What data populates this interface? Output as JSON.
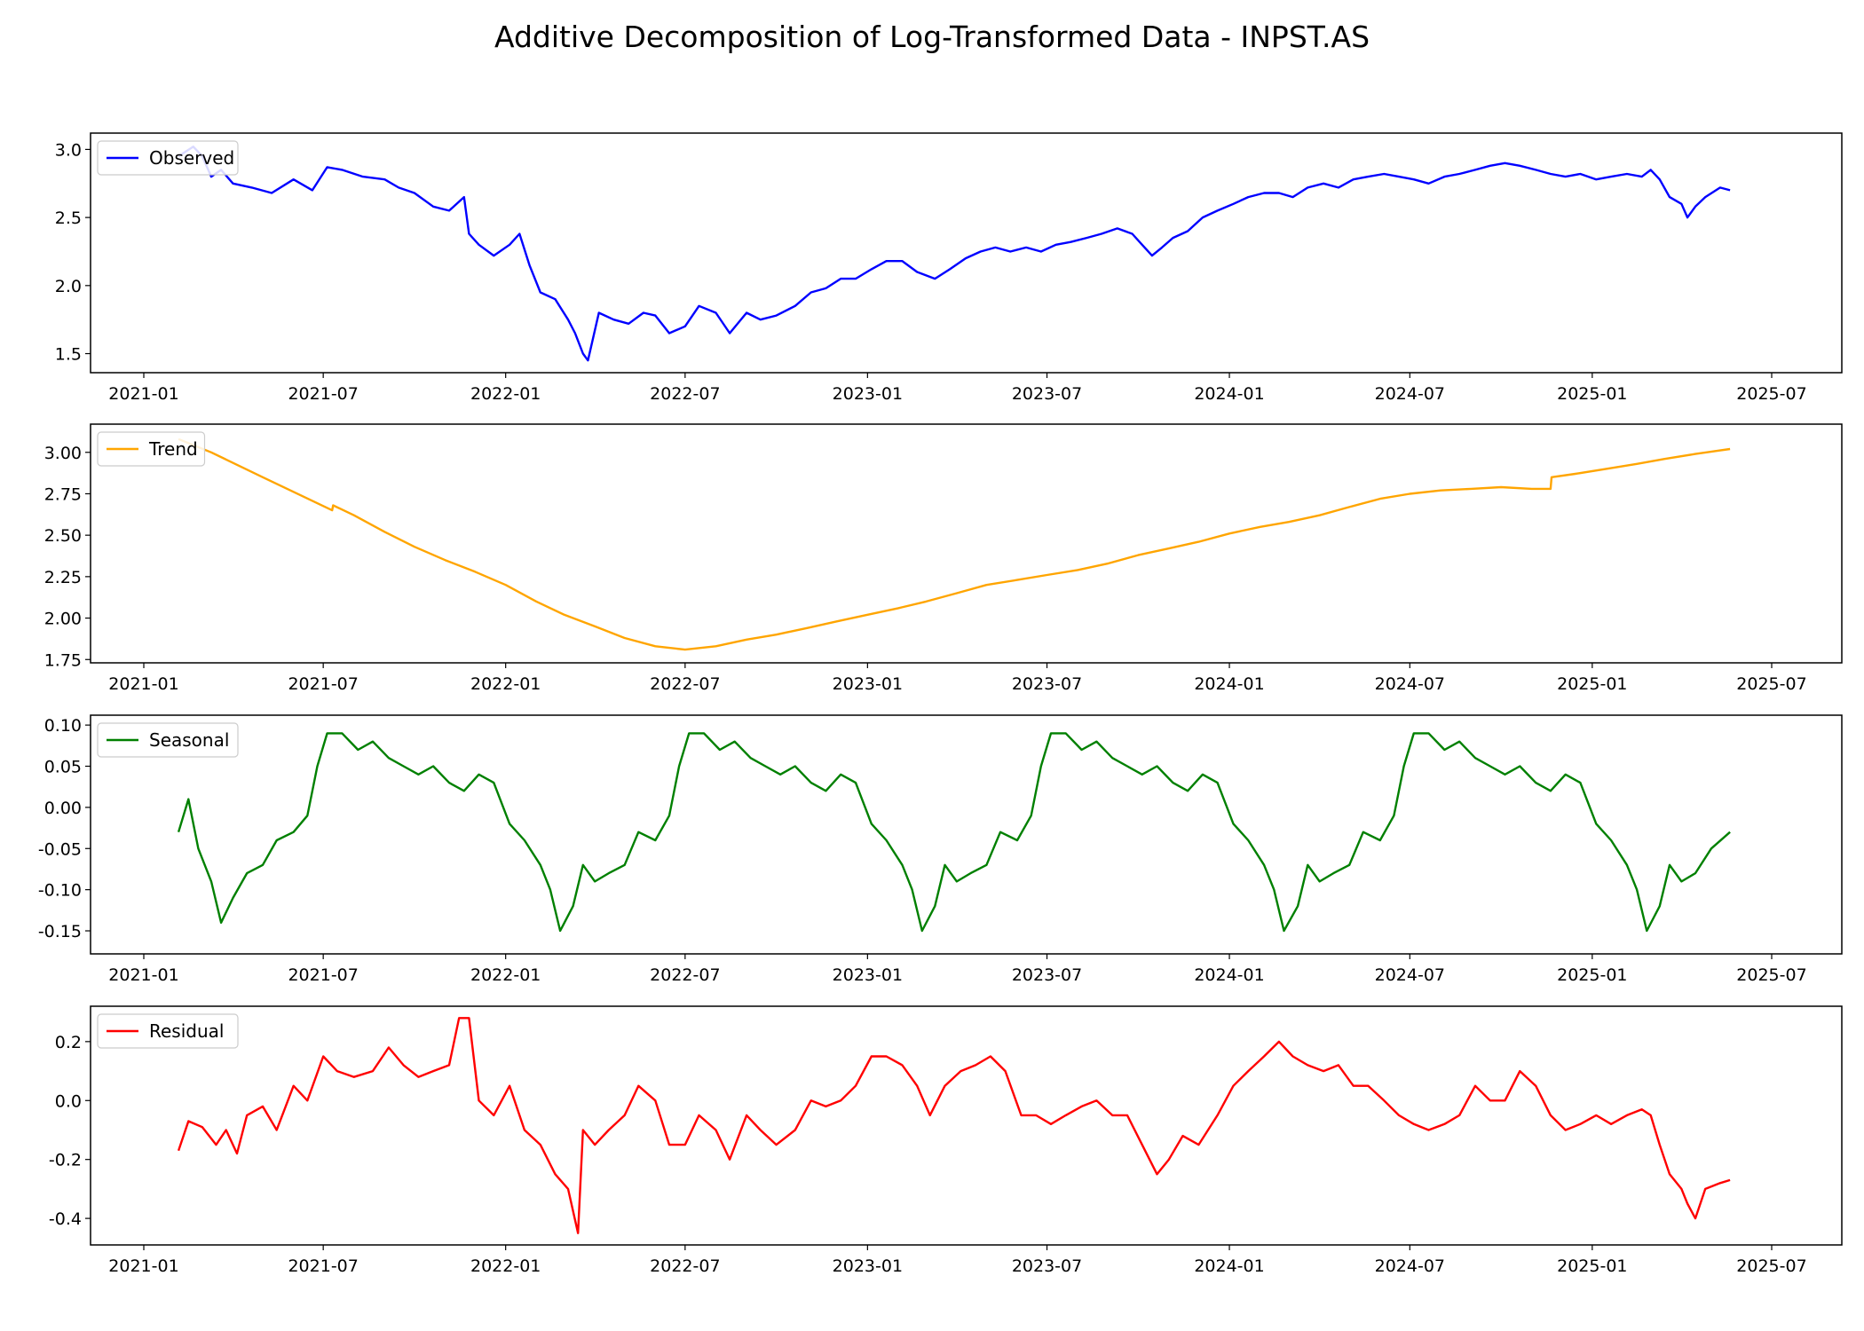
{
  "title": "Additive Decomposition of Log-Transformed Data - INPST.AS",
  "chart_data": [
    {
      "type": "line",
      "name": "Observed",
      "color": "#0000ff",
      "legend": "upper-left",
      "x_ticks": [
        "2021-01",
        "2021-07",
        "2022-01",
        "2022-07",
        "2023-01",
        "2023-07",
        "2024-01",
        "2024-07",
        "2025-01",
        "2025-07"
      ],
      "y_ticks": [
        "1.5",
        "2.0",
        "2.5",
        "3.0"
      ],
      "ylim": [
        1.36,
        3.12
      ],
      "series": [
        {
          "name": "Observed",
          "x": [
            "2021-02-05",
            "2021-02-20",
            "2021-03-01",
            "2021-03-10",
            "2021-03-20",
            "2021-04-01",
            "2021-04-20",
            "2021-05-10",
            "2021-06-01",
            "2021-06-20",
            "2021-07-05",
            "2021-07-20",
            "2021-08-10",
            "2021-09-01",
            "2021-09-15",
            "2021-10-01",
            "2021-10-20",
            "2021-11-05",
            "2021-11-20",
            "2021-11-25",
            "2021-12-05",
            "2021-12-20",
            "2022-01-05",
            "2022-01-15",
            "2022-01-25",
            "2022-02-05",
            "2022-02-20",
            "2022-03-05",
            "2022-03-12",
            "2022-03-20",
            "2022-03-25",
            "2022-04-05",
            "2022-04-20",
            "2022-05-05",
            "2022-05-20",
            "2022-06-01",
            "2022-06-15",
            "2022-07-01",
            "2022-07-15",
            "2022-08-01",
            "2022-08-15",
            "2022-09-01",
            "2022-09-15",
            "2022-10-01",
            "2022-10-20",
            "2022-11-05",
            "2022-11-20",
            "2022-12-05",
            "2022-12-20",
            "2023-01-05",
            "2023-01-20",
            "2023-02-05",
            "2023-02-20",
            "2023-03-10",
            "2023-03-25",
            "2023-04-10",
            "2023-04-25",
            "2023-05-10",
            "2023-05-25",
            "2023-06-10",
            "2023-06-25",
            "2023-07-10",
            "2023-07-25",
            "2023-08-10",
            "2023-08-25",
            "2023-09-10",
            "2023-09-25",
            "2023-10-05",
            "2023-10-15",
            "2023-10-25",
            "2023-11-05",
            "2023-11-20",
            "2023-12-05",
            "2023-12-20",
            "2024-01-05",
            "2024-01-20",
            "2024-02-05",
            "2024-02-20",
            "2024-03-05",
            "2024-03-20",
            "2024-04-05",
            "2024-04-20",
            "2024-05-05",
            "2024-05-20",
            "2024-06-05",
            "2024-06-20",
            "2024-07-05",
            "2024-07-20",
            "2024-08-05",
            "2024-08-20",
            "2024-09-05",
            "2024-09-20",
            "2024-10-05",
            "2024-10-20",
            "2024-11-05",
            "2024-11-20",
            "2024-12-05",
            "2024-12-20",
            "2025-01-05",
            "2025-01-20",
            "2025-02-05",
            "2025-02-20",
            "2025-03-01",
            "2025-03-10",
            "2025-03-20",
            "2025-04-01",
            "2025-04-07",
            "2025-04-15",
            "2025-04-25",
            "2025-05-10",
            "2025-05-20"
          ],
          "y": [
            2.95,
            3.02,
            2.95,
            2.8,
            2.85,
            2.75,
            2.72,
            2.68,
            2.78,
            2.7,
            2.87,
            2.85,
            2.8,
            2.78,
            2.72,
            2.68,
            2.58,
            2.55,
            2.65,
            2.38,
            2.3,
            2.22,
            2.3,
            2.38,
            2.15,
            1.95,
            1.9,
            1.75,
            1.65,
            1.5,
            1.45,
            1.8,
            1.75,
            1.72,
            1.8,
            1.78,
            1.65,
            1.7,
            1.85,
            1.8,
            1.65,
            1.8,
            1.75,
            1.78,
            1.85,
            1.95,
            1.98,
            2.05,
            2.05,
            2.12,
            2.18,
            2.18,
            2.1,
            2.05,
            2.12,
            2.2,
            2.25,
            2.28,
            2.25,
            2.28,
            2.25,
            2.3,
            2.32,
            2.35,
            2.38,
            2.42,
            2.38,
            2.3,
            2.22,
            2.28,
            2.35,
            2.4,
            2.5,
            2.55,
            2.6,
            2.65,
            2.68,
            2.68,
            2.65,
            2.72,
            2.75,
            2.72,
            2.78,
            2.8,
            2.82,
            2.8,
            2.78,
            2.75,
            2.8,
            2.82,
            2.85,
            2.88,
            2.9,
            2.88,
            2.85,
            2.82,
            2.8,
            2.82,
            2.78,
            2.8,
            2.82,
            2.8,
            2.85,
            2.78,
            2.65,
            2.6,
            2.5,
            2.58,
            2.65,
            2.72,
            2.7
          ]
        }
      ]
    },
    {
      "type": "line",
      "name": "Trend",
      "color": "#ffa500",
      "legend": "upper-left",
      "x_ticks": [
        "2021-01",
        "2021-07",
        "2022-01",
        "2022-07",
        "2023-01",
        "2023-07",
        "2024-01",
        "2024-07",
        "2025-01",
        "2025-07"
      ],
      "y_ticks": [
        "1.75",
        "2.00",
        "2.25",
        "2.50",
        "2.75",
        "3.00"
      ],
      "ylim": [
        1.73,
        3.17
      ],
      "series": [
        {
          "name": "Trend",
          "x": [
            "2021-02-05",
            "2021-03-10",
            "2021-05-01",
            "2021-07-10",
            "2021-07-11",
            "2021-08-01",
            "2021-09-01",
            "2021-10-01",
            "2021-11-01",
            "2021-12-01",
            "2022-01-01",
            "2022-02-01",
            "2022-03-01",
            "2022-04-01",
            "2022-05-01",
            "2022-06-01",
            "2022-07-01",
            "2022-08-01",
            "2022-09-01",
            "2022-10-01",
            "2022-11-01",
            "2022-12-01",
            "2023-01-01",
            "2023-02-01",
            "2023-03-01",
            "2023-04-01",
            "2023-05-01",
            "2023-06-01",
            "2023-07-01",
            "2023-08-01",
            "2023-09-01",
            "2023-10-01",
            "2023-11-01",
            "2023-12-01",
            "2024-01-01",
            "2024-02-01",
            "2024-03-01",
            "2024-04-01",
            "2024-05-01",
            "2024-06-01",
            "2024-07-01",
            "2024-08-01",
            "2024-09-01",
            "2024-10-01",
            "2024-11-01",
            "2024-11-20",
            "2024-11-21",
            "2024-12-15",
            "2025-01-15",
            "2025-02-15",
            "2025-03-15",
            "2025-04-15",
            "2025-05-20"
          ],
          "y": [
            3.08,
            3.0,
            2.85,
            2.65,
            2.68,
            2.62,
            2.52,
            2.43,
            2.35,
            2.28,
            2.2,
            2.1,
            2.02,
            1.95,
            1.88,
            1.83,
            1.81,
            1.83,
            1.87,
            1.9,
            1.94,
            1.98,
            2.02,
            2.06,
            2.1,
            2.15,
            2.2,
            2.23,
            2.26,
            2.29,
            2.33,
            2.38,
            2.42,
            2.46,
            2.51,
            2.55,
            2.58,
            2.62,
            2.67,
            2.72,
            2.75,
            2.77,
            2.78,
            2.79,
            2.78,
            2.78,
            2.85,
            2.87,
            2.9,
            2.93,
            2.96,
            2.99,
            3.02
          ]
        }
      ]
    },
    {
      "type": "line",
      "name": "Seasonal",
      "color": "#008000",
      "legend": "upper-left",
      "x_ticks": [
        "2021-01",
        "2021-07",
        "2022-01",
        "2022-07",
        "2023-01",
        "2023-07",
        "2024-01",
        "2024-07",
        "2025-01",
        "2025-07"
      ],
      "y_ticks": [
        "-0.15",
        "-0.10",
        "-0.05",
        "0.00",
        "0.05",
        "0.10"
      ],
      "ylim": [
        -0.178,
        0.112
      ],
      "series": [
        {
          "name": "Seasonal",
          "x": [
            "2021-02-05",
            "2021-02-15",
            "2021-02-25",
            "2021-03-10",
            "2021-03-20",
            "2021-04-01",
            "2021-04-15",
            "2021-05-01",
            "2021-05-15",
            "2021-06-01",
            "2021-06-15",
            "2021-06-25",
            "2021-07-05",
            "2021-07-20",
            "2021-08-05",
            "2021-08-20",
            "2021-09-05",
            "2021-09-20",
            "2021-10-05",
            "2021-10-20",
            "2021-11-05",
            "2021-11-20",
            "2021-12-05",
            "2021-12-20",
            "2022-01-05",
            "2022-01-20",
            "2022-02-05",
            "2022-02-15",
            "2022-02-25",
            "2022-03-10",
            "2022-03-20",
            "2022-04-01",
            "2022-04-15",
            "2022-05-01",
            "2022-05-15",
            "2022-06-01",
            "2022-06-15",
            "2022-06-25",
            "2022-07-05",
            "2022-07-20",
            "2022-08-05",
            "2022-08-20",
            "2022-09-05",
            "2022-09-20",
            "2022-10-05",
            "2022-10-20",
            "2022-11-05",
            "2022-11-20",
            "2022-12-05",
            "2022-12-20",
            "2023-01-05",
            "2023-01-20",
            "2023-02-05",
            "2023-02-15",
            "2023-02-25",
            "2023-03-10",
            "2023-03-20",
            "2023-04-01",
            "2023-04-15",
            "2023-05-01",
            "2023-05-15",
            "2023-06-01",
            "2023-06-15",
            "2023-06-25",
            "2023-07-05",
            "2023-07-20",
            "2023-08-05",
            "2023-08-20",
            "2023-09-05",
            "2023-09-20",
            "2023-10-05",
            "2023-10-20",
            "2023-11-05",
            "2023-11-20",
            "2023-12-05",
            "2023-12-20",
            "2024-01-05",
            "2024-01-20",
            "2024-02-05",
            "2024-02-15",
            "2024-02-25",
            "2024-03-10",
            "2024-03-20",
            "2024-04-01",
            "2024-04-15",
            "2024-05-01",
            "2024-05-15",
            "2024-06-01",
            "2024-06-15",
            "2024-06-25",
            "2024-07-05",
            "2024-07-20",
            "2024-08-05",
            "2024-08-20",
            "2024-09-05",
            "2024-09-20",
            "2024-10-05",
            "2024-10-20",
            "2024-11-05",
            "2024-11-20",
            "2024-12-05",
            "2024-12-20",
            "2025-01-05",
            "2025-01-20",
            "2025-02-05",
            "2025-02-15",
            "2025-02-25",
            "2025-03-10",
            "2025-03-20",
            "2025-04-01",
            "2025-04-15",
            "2025-05-01",
            "2025-05-20"
          ],
          "y": [
            -0.03,
            0.01,
            -0.05,
            -0.09,
            -0.14,
            -0.11,
            -0.08,
            -0.07,
            -0.04,
            -0.03,
            -0.01,
            0.05,
            0.09,
            0.09,
            0.07,
            0.08,
            0.06,
            0.05,
            0.04,
            0.05,
            0.03,
            0.02,
            0.04,
            0.03,
            -0.02,
            -0.04,
            -0.07,
            -0.1,
            -0.15,
            -0.12,
            -0.07,
            -0.09,
            -0.08,
            -0.07,
            -0.03,
            -0.04,
            -0.01,
            0.05,
            0.09,
            0.09,
            0.07,
            0.08,
            0.06,
            0.05,
            0.04,
            0.05,
            0.03,
            0.02,
            0.04,
            0.03,
            -0.02,
            -0.04,
            -0.07,
            -0.1,
            -0.15,
            -0.12,
            -0.07,
            -0.09,
            -0.08,
            -0.07,
            -0.03,
            -0.04,
            -0.01,
            0.05,
            0.09,
            0.09,
            0.07,
            0.08,
            0.06,
            0.05,
            0.04,
            0.05,
            0.03,
            0.02,
            0.04,
            0.03,
            -0.02,
            -0.04,
            -0.07,
            -0.1,
            -0.15,
            -0.12,
            -0.07,
            -0.09,
            -0.08,
            -0.07,
            -0.03,
            -0.04,
            -0.01,
            0.05,
            0.09,
            0.09,
            0.07,
            0.08,
            0.06,
            0.05,
            0.04,
            0.05,
            0.03,
            0.02,
            0.04,
            0.03,
            -0.02,
            -0.04,
            -0.07,
            -0.1,
            -0.15,
            -0.12,
            -0.07,
            -0.09,
            -0.08,
            -0.05,
            -0.03
          ]
        }
      ]
    },
    {
      "type": "line",
      "name": "Residual",
      "color": "#ff0000",
      "legend": "upper-left",
      "x_ticks": [
        "2021-01",
        "2021-07",
        "2022-01",
        "2022-07",
        "2023-01",
        "2023-07",
        "2024-01",
        "2024-07",
        "2025-01",
        "2025-07"
      ],
      "y_ticks": [
        "-0.4",
        "-0.2",
        "0.0",
        "0.2"
      ],
      "ylim": [
        -0.49,
        0.32
      ],
      "series": [
        {
          "name": "Residual",
          "x": [
            "2021-02-05",
            "2021-02-15",
            "2021-03-01",
            "2021-03-15",
            "2021-03-25",
            "2021-04-05",
            "2021-04-15",
            "2021-05-01",
            "2021-05-15",
            "2021-06-01",
            "2021-06-15",
            "2021-07-01",
            "2021-07-15",
            "2021-08-01",
            "2021-08-20",
            "2021-09-05",
            "2021-09-20",
            "2021-10-05",
            "2021-10-20",
            "2021-11-05",
            "2021-11-15",
            "2021-11-25",
            "2021-12-05",
            "2021-12-20",
            "2022-01-05",
            "2022-01-20",
            "2022-02-05",
            "2022-02-20",
            "2022-03-05",
            "2022-03-15",
            "2022-03-20",
            "2022-04-01",
            "2022-04-15",
            "2022-05-01",
            "2022-05-15",
            "2022-06-01",
            "2022-06-15",
            "2022-07-01",
            "2022-07-15",
            "2022-08-01",
            "2022-08-15",
            "2022-09-01",
            "2022-09-15",
            "2022-10-01",
            "2022-10-20",
            "2022-11-05",
            "2022-11-20",
            "2022-12-05",
            "2022-12-20",
            "2023-01-05",
            "2023-01-20",
            "2023-02-05",
            "2023-02-20",
            "2023-03-05",
            "2023-03-20",
            "2023-04-05",
            "2023-04-20",
            "2023-05-05",
            "2023-05-20",
            "2023-06-05",
            "2023-06-20",
            "2023-07-05",
            "2023-07-20",
            "2023-08-05",
            "2023-08-20",
            "2023-09-05",
            "2023-09-20",
            "2023-10-05",
            "2023-10-20",
            "2023-11-01",
            "2023-11-15",
            "2023-12-01",
            "2023-12-20",
            "2024-01-05",
            "2024-01-20",
            "2024-02-05",
            "2024-02-20",
            "2024-03-05",
            "2024-03-20",
            "2024-04-05",
            "2024-04-20",
            "2024-05-05",
            "2024-05-20",
            "2024-06-05",
            "2024-06-20",
            "2024-07-05",
            "2024-07-20",
            "2024-08-05",
            "2024-08-20",
            "2024-09-05",
            "2024-09-20",
            "2024-10-05",
            "2024-10-20",
            "2024-11-05",
            "2024-11-20",
            "2024-12-05",
            "2024-12-20",
            "2025-01-05",
            "2025-01-20",
            "2025-02-05",
            "2025-02-20",
            "2025-03-01",
            "2025-03-10",
            "2025-03-20",
            "2025-04-01",
            "2025-04-07",
            "2025-04-15",
            "2025-04-25",
            "2025-05-10",
            "2025-05-20"
          ],
          "y": [
            -0.17,
            -0.07,
            -0.09,
            -0.15,
            -0.1,
            -0.18,
            -0.05,
            -0.02,
            -0.1,
            0.05,
            0.0,
            0.15,
            0.1,
            0.08,
            0.1,
            0.18,
            0.12,
            0.08,
            0.1,
            0.12,
            0.28,
            0.28,
            0.0,
            -0.05,
            0.05,
            -0.1,
            -0.15,
            -0.25,
            -0.3,
            -0.45,
            -0.1,
            -0.15,
            -0.1,
            -0.05,
            0.05,
            0.0,
            -0.15,
            -0.15,
            -0.05,
            -0.1,
            -0.2,
            -0.05,
            -0.1,
            -0.15,
            -0.1,
            0.0,
            -0.02,
            0.0,
            0.05,
            0.15,
            0.15,
            0.12,
            0.05,
            -0.05,
            0.05,
            0.1,
            0.12,
            0.15,
            0.1,
            -0.05,
            -0.05,
            -0.08,
            -0.05,
            -0.02,
            0.0,
            -0.05,
            -0.05,
            -0.15,
            -0.25,
            -0.2,
            -0.12,
            -0.15,
            -0.05,
            0.05,
            0.1,
            0.15,
            0.2,
            0.15,
            0.12,
            0.1,
            0.12,
            0.05,
            0.05,
            0.0,
            -0.05,
            -0.08,
            -0.1,
            -0.08,
            -0.05,
            0.05,
            0.0,
            0.0,
            0.1,
            0.05,
            -0.05,
            -0.1,
            -0.08,
            -0.05,
            -0.08,
            -0.05,
            -0.03,
            -0.05,
            -0.15,
            -0.25,
            -0.3,
            -0.35,
            -0.4,
            -0.3,
            -0.28,
            -0.27
          ]
        }
      ]
    }
  ]
}
